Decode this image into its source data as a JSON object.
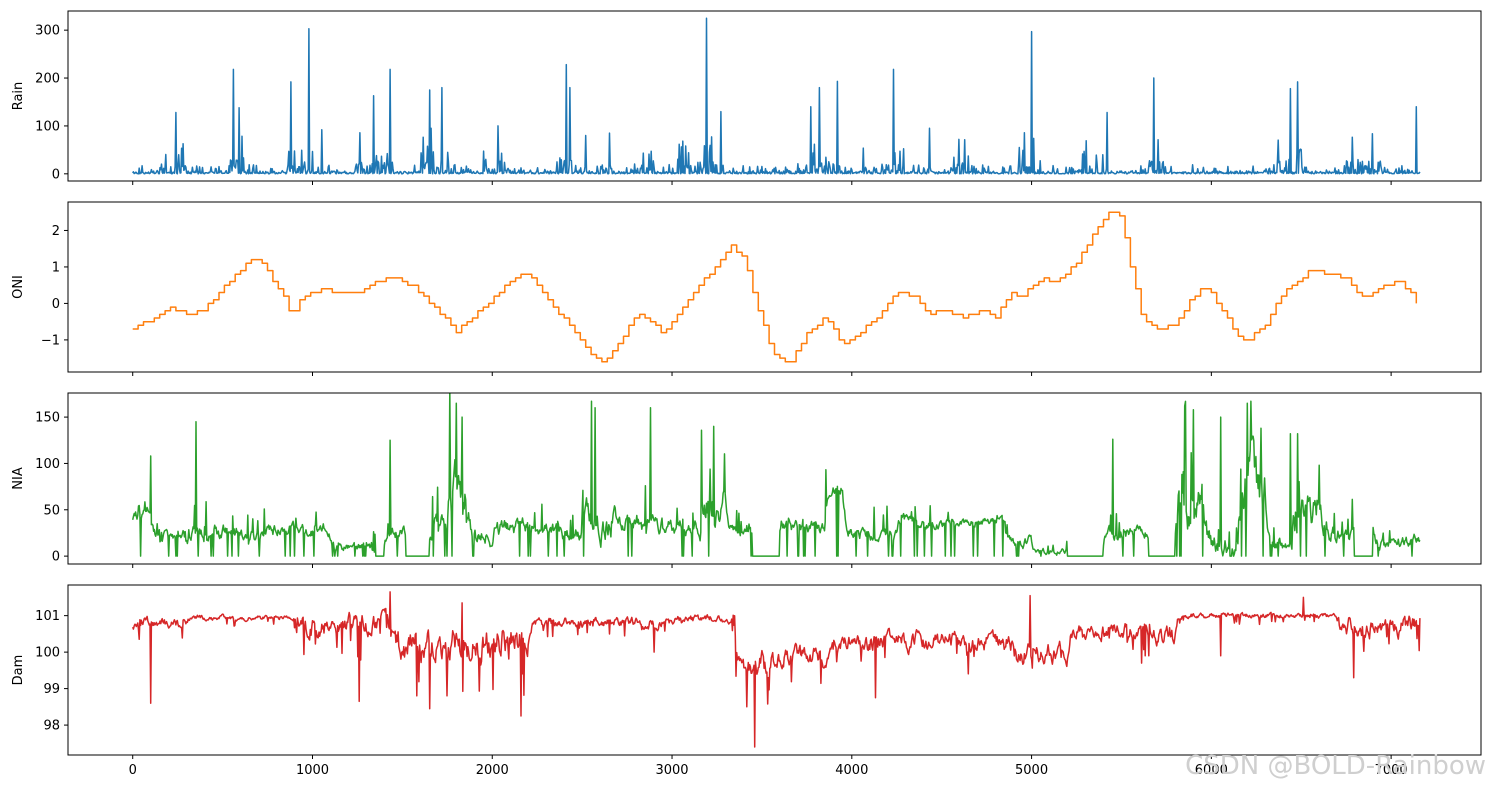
{
  "figure": {
    "watermark": "CSDN @BOLD-Rainbow"
  },
  "chart_data": [
    {
      "type": "line",
      "ylabel": "Rain",
      "color": "#1f77b4",
      "xlim": [
        -360,
        7500
      ],
      "ylim": [
        -15,
        340
      ],
      "yticks": [
        0,
        100,
        200,
        300
      ],
      "ytick_labels": [
        "0",
        "100",
        "200",
        "300"
      ],
      "style": "spiky",
      "baseline": 0,
      "noise": 12,
      "bursts": [
        [
          150,
          300,
          45
        ],
        [
          520,
          620,
          60
        ],
        [
          860,
          1000,
          40
        ],
        [
          1230,
          1450,
          55
        ],
        [
          1600,
          1760,
          60
        ],
        [
          1950,
          2150,
          30
        ],
        [
          2350,
          2450,
          60
        ],
        [
          2780,
          2900,
          30
        ],
        [
          3030,
          3230,
          50
        ],
        [
          3700,
          3900,
          45
        ],
        [
          4050,
          4300,
          40
        ],
        [
          4550,
          4650,
          45
        ],
        [
          4900,
          5050,
          60
        ],
        [
          5280,
          5400,
          45
        ],
        [
          5650,
          5750,
          55
        ],
        [
          6350,
          6500,
          60
        ],
        [
          6750,
          6950,
          55
        ]
      ],
      "peaks": [
        [
          240,
          128
        ],
        [
          560,
          218
        ],
        [
          590,
          138
        ],
        [
          880,
          192
        ],
        [
          980,
          303
        ],
        [
          1050,
          92
        ],
        [
          1340,
          163
        ],
        [
          1430,
          218
        ],
        [
          1650,
          175
        ],
        [
          1720,
          180
        ],
        [
          2030,
          100
        ],
        [
          2410,
          228
        ],
        [
          2430,
          180
        ],
        [
          2520,
          80
        ],
        [
          2650,
          85
        ],
        [
          3190,
          325
        ],
        [
          3270,
          130
        ],
        [
          3770,
          140
        ],
        [
          3820,
          180
        ],
        [
          3920,
          193
        ],
        [
          4230,
          218
        ],
        [
          4430,
          95
        ],
        [
          5000,
          297
        ],
        [
          5420,
          128
        ],
        [
          5680,
          200
        ],
        [
          6440,
          178
        ],
        [
          6480,
          192
        ],
        [
          7140,
          140
        ]
      ],
      "xmax": 7160,
      "seed": 11
    },
    {
      "type": "line",
      "ylabel": "ONI",
      "color": "#ff7f0e",
      "xlim": [
        -360,
        7500
      ],
      "ylim": [
        -1.88,
        2.78
      ],
      "yticks": [
        -1,
        0,
        1,
        2
      ],
      "ytick_labels": [
        "−1",
        "0",
        "1",
        "2"
      ],
      "style": "step",
      "step": 30,
      "knots": [
        [
          0,
          -0.7
        ],
        [
          120,
          -0.4
        ],
        [
          200,
          -0.1
        ],
        [
          300,
          -0.3
        ],
        [
          380,
          -0.2
        ],
        [
          480,
          0.3
        ],
        [
          600,
          0.9
        ],
        [
          680,
          1.3
        ],
        [
          760,
          0.8
        ],
        [
          850,
          0.1
        ],
        [
          880,
          -0.3
        ],
        [
          950,
          0.2
        ],
        [
          1050,
          0.4
        ],
        [
          1150,
          0.3
        ],
        [
          1250,
          0.3
        ],
        [
          1350,
          0.6
        ],
        [
          1450,
          0.7
        ],
        [
          1550,
          0.5
        ],
        [
          1650,
          0.0
        ],
        [
          1750,
          -0.5
        ],
        [
          1800,
          -0.8
        ],
        [
          1900,
          -0.3
        ],
        [
          2000,
          0.1
        ],
        [
          2100,
          0.6
        ],
        [
          2180,
          0.9
        ],
        [
          2250,
          0.5
        ],
        [
          2350,
          -0.2
        ],
        [
          2450,
          -0.7
        ],
        [
          2550,
          -1.4
        ],
        [
          2620,
          -1.6
        ],
        [
          2700,
          -1.1
        ],
        [
          2800,
          -0.3
        ],
        [
          2880,
          -0.5
        ],
        [
          2950,
          -0.8
        ],
        [
          3050,
          -0.2
        ],
        [
          3150,
          0.5
        ],
        [
          3250,
          1.0
        ],
        [
          3320,
          1.6
        ],
        [
          3400,
          1.2
        ],
        [
          3480,
          -0.2
        ],
        [
          3560,
          -1.4
        ],
        [
          3650,
          -1.7
        ],
        [
          3750,
          -0.8
        ],
        [
          3850,
          -0.4
        ],
        [
          3950,
          -1.1
        ],
        [
          4050,
          -0.8
        ],
        [
          4150,
          -0.3
        ],
        [
          4250,
          0.3
        ],
        [
          4350,
          0.2
        ],
        [
          4420,
          -0.3
        ],
        [
          4520,
          -0.2
        ],
        [
          4620,
          -0.4
        ],
        [
          4720,
          -0.2
        ],
        [
          4800,
          -0.4
        ],
        [
          4880,
          0.3
        ],
        [
          4950,
          0.2
        ],
        [
          5050,
          0.7
        ],
        [
          5150,
          0.6
        ],
        [
          5250,
          1.1
        ],
        [
          5350,
          2.0
        ],
        [
          5450,
          2.6
        ],
        [
          5500,
          2.3
        ],
        [
          5550,
          1.0
        ],
        [
          5620,
          -0.5
        ],
        [
          5700,
          -0.7
        ],
        [
          5800,
          -0.6
        ],
        [
          5880,
          0.1
        ],
        [
          5950,
          0.4
        ],
        [
          6000,
          0.3
        ],
        [
          6070,
          -0.3
        ],
        [
          6150,
          -0.9
        ],
        [
          6200,
          -1.0
        ],
        [
          6300,
          -0.6
        ],
        [
          6380,
          0.2
        ],
        [
          6450,
          0.5
        ],
        [
          6550,
          0.9
        ],
        [
          6650,
          0.8
        ],
        [
          6750,
          0.7
        ],
        [
          6850,
          0.1
        ],
        [
          6950,
          0.5
        ],
        [
          7050,
          0.6
        ],
        [
          7120,
          0.2
        ],
        [
          7160,
          -0.2
        ]
      ],
      "xmax": 7160
    },
    {
      "type": "line",
      "ylabel": "NIA",
      "color": "#2ca02c",
      "xlim": [
        -360,
        7500
      ],
      "ylim": [
        -8.5,
        176
      ],
      "yticks": [
        0,
        50,
        100,
        150
      ],
      "ytick_labels": [
        "0",
        "50",
        "100",
        "150"
      ],
      "style": "segments",
      "segments": [
        [
          0,
          100,
          45,
          10
        ],
        [
          100,
          300,
          20,
          12
        ],
        [
          300,
          600,
          25,
          14
        ],
        [
          600,
          700,
          20,
          12
        ],
        [
          700,
          1100,
          28,
          12
        ],
        [
          1100,
          1350,
          10,
          8
        ],
        [
          1350,
          1400,
          0,
          0
        ],
        [
          1400,
          1520,
          25,
          12
        ],
        [
          1520,
          1650,
          0,
          0
        ],
        [
          1650,
          1750,
          35,
          20
        ],
        [
          1750,
          1850,
          70,
          45
        ],
        [
          1850,
          2000,
          20,
          15
        ],
        [
          2000,
          2300,
          30,
          15
        ],
        [
          2300,
          2500,
          25,
          15
        ],
        [
          2500,
          2700,
          40,
          30
        ],
        [
          2700,
          2950,
          35,
          18
        ],
        [
          2950,
          3150,
          30,
          15
        ],
        [
          3150,
          3300,
          50,
          35
        ],
        [
          3300,
          3450,
          25,
          10
        ],
        [
          3450,
          3600,
          0,
          0
        ],
        [
          3600,
          3850,
          30,
          12
        ],
        [
          3850,
          3950,
          75,
          10
        ],
        [
          3950,
          4250,
          25,
          12
        ],
        [
          4250,
          4350,
          45,
          10
        ],
        [
          4350,
          4650,
          35,
          8
        ],
        [
          4650,
          4850,
          38,
          8
        ],
        [
          4850,
          5000,
          15,
          10
        ],
        [
          5000,
          5200,
          5,
          6
        ],
        [
          5200,
          5400,
          0,
          0
        ],
        [
          5400,
          5650,
          25,
          12
        ],
        [
          5650,
          5800,
          0,
          0
        ],
        [
          5800,
          5950,
          60,
          50
        ],
        [
          5950,
          6150,
          20,
          25
        ],
        [
          6150,
          6300,
          80,
          60
        ],
        [
          6300,
          6450,
          10,
          10
        ],
        [
          6450,
          6650,
          45,
          40
        ],
        [
          6650,
          6800,
          25,
          15
        ],
        [
          6800,
          6900,
          0,
          0
        ],
        [
          6900,
          7160,
          15,
          12
        ]
      ],
      "peaks": [
        [
          100,
          108
        ],
        [
          350,
          145
        ],
        [
          1430,
          125
        ],
        [
          1800,
          165
        ],
        [
          1830,
          150
        ],
        [
          2550,
          167
        ],
        [
          2570,
          160
        ],
        [
          2880,
          160
        ],
        [
          3230,
          140
        ],
        [
          5450,
          126
        ],
        [
          5850,
          162
        ],
        [
          5900,
          158
        ],
        [
          6050,
          150
        ],
        [
          6200,
          165
        ],
        [
          6220,
          167
        ],
        [
          6440,
          132
        ],
        [
          6480,
          132
        ],
        [
          6600,
          98
        ]
      ],
      "xmax": 7160,
      "seed": 29
    },
    {
      "type": "line",
      "ylabel": "Dam",
      "color": "#d62728",
      "xlim": [
        -360,
        7500
      ],
      "ylim": [
        97.18,
        101.84
      ],
      "yticks": [
        98,
        99,
        100,
        101
      ],
      "ytick_labels": [
        "98",
        "99",
        "100",
        "101"
      ],
      "style": "levels",
      "levels": [
        [
          0,
          300,
          100.8,
          0.15
        ],
        [
          300,
          900,
          100.95,
          0.08
        ],
        [
          900,
          1200,
          100.7,
          0.3
        ],
        [
          1200,
          1450,
          100.8,
          0.35
        ],
        [
          1450,
          2000,
          100.2,
          0.5
        ],
        [
          2000,
          2200,
          100.3,
          0.5
        ],
        [
          2200,
          3000,
          100.8,
          0.15
        ],
        [
          3000,
          3350,
          100.9,
          0.12
        ],
        [
          3350,
          3550,
          99.6,
          0.4
        ],
        [
          3550,
          3900,
          99.9,
          0.3
        ],
        [
          3900,
          4600,
          100.3,
          0.3
        ],
        [
          4600,
          4900,
          100.2,
          0.3
        ],
        [
          4900,
          5200,
          100.0,
          0.3
        ],
        [
          5200,
          5650,
          100.6,
          0.25
        ],
        [
          5650,
          5800,
          100.5,
          0.35
        ],
        [
          5800,
          6700,
          101.0,
          0.08
        ],
        [
          6700,
          7160,
          100.7,
          0.3
        ]
      ],
      "dips": [
        [
          100,
          98.6
        ],
        [
          1260,
          98.65
        ],
        [
          1650,
          98.45
        ],
        [
          2160,
          98.25
        ],
        [
          2900,
          100.0
        ],
        [
          3460,
          97.4
        ],
        [
          4130,
          98.75
        ],
        [
          5610,
          99.7
        ],
        [
          6050,
          99.9
        ],
        [
          6790,
          99.3
        ]
      ],
      "spikes": [
        [
          1430,
          101.65
        ],
        [
          1830,
          101.35
        ],
        [
          4990,
          101.55
        ],
        [
          6510,
          101.5
        ]
      ],
      "xmax": 7160,
      "seed": 47,
      "xticks": [
        0,
        1000,
        2000,
        3000,
        4000,
        5000,
        6000,
        7000
      ],
      "xtick_labels": [
        "0",
        "1000",
        "2000",
        "3000",
        "4000",
        "5000",
        "6000",
        "7000"
      ]
    }
  ]
}
